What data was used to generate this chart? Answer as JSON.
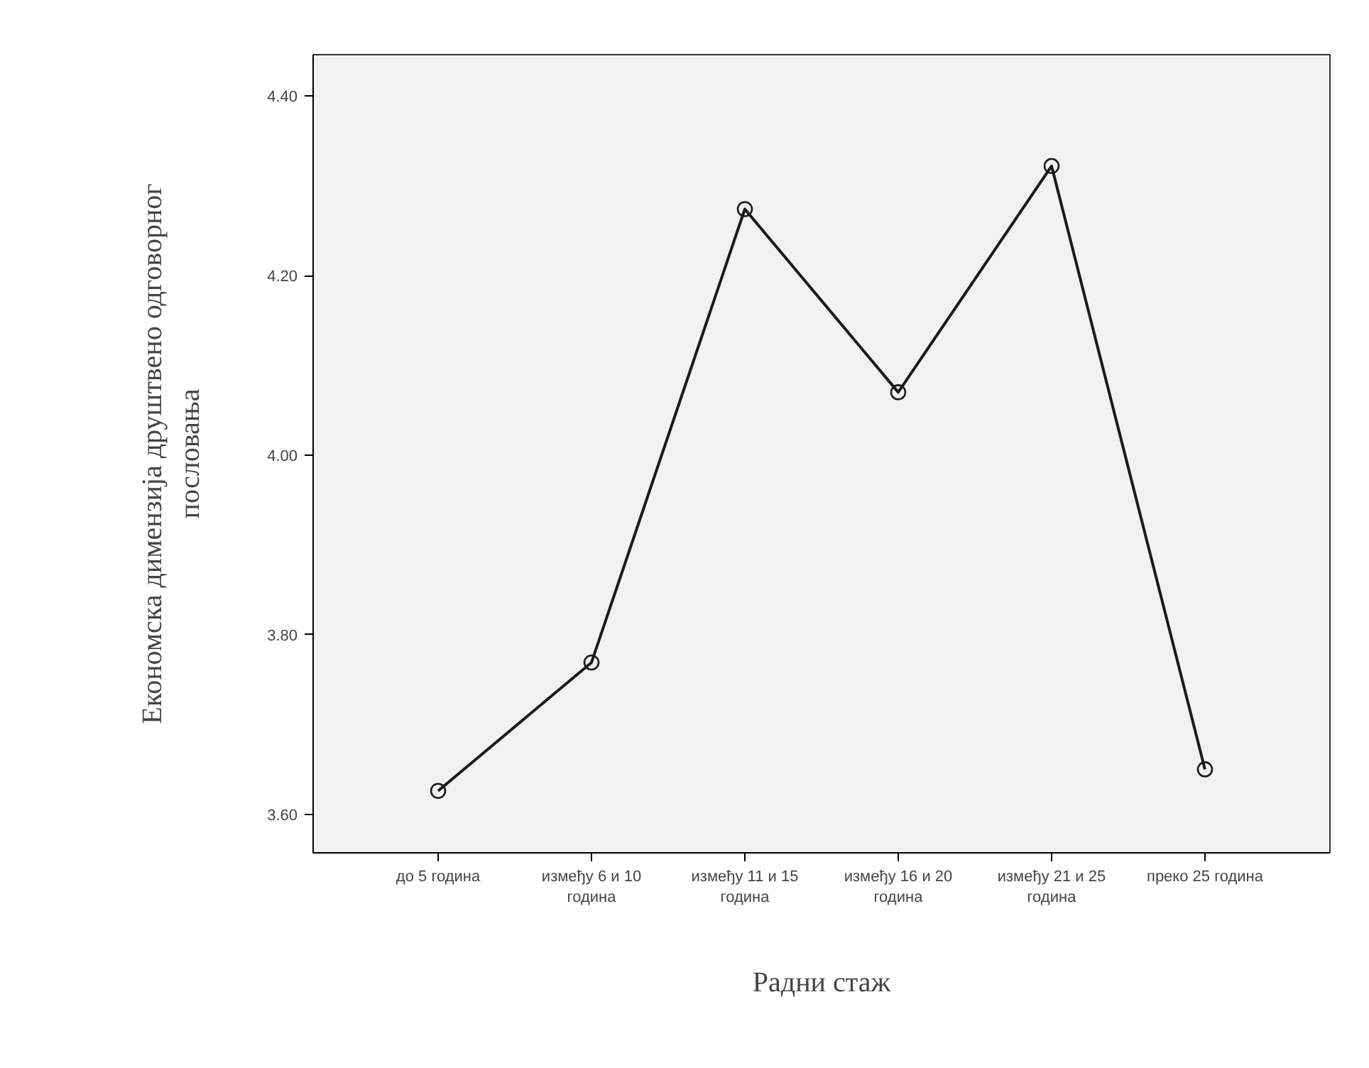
{
  "chart_data": {
    "type": "line",
    "categories": [
      "до 5 година",
      "између 6 и 10\nгодина",
      "између 11 и 15\nгодина",
      "између 16 и 20\nгодина",
      "између 21 и 25\nгодина",
      "преко 25 година"
    ],
    "series": [
      {
        "color": "#1a1a1a",
        "values": [
          3.626,
          3.769,
          4.274,
          4.07,
          4.322,
          3.65
        ]
      }
    ],
    "xlabel": "Радни стаж",
    "ylabel": "Економска димензија друштвено одговорног\nпословања",
    "ylim": [
      3.557,
      4.446
    ],
    "yticks": [
      {
        "value": 3.6,
        "label": "3.60"
      },
      {
        "value": 3.8,
        "label": "3.80"
      },
      {
        "value": 4.0,
        "label": "4.00"
      },
      {
        "value": 4.2,
        "label": "4.20"
      },
      {
        "value": 4.4,
        "label": "4.40"
      }
    ],
    "grid": false,
    "marker": "circle",
    "line_style": "solid"
  }
}
